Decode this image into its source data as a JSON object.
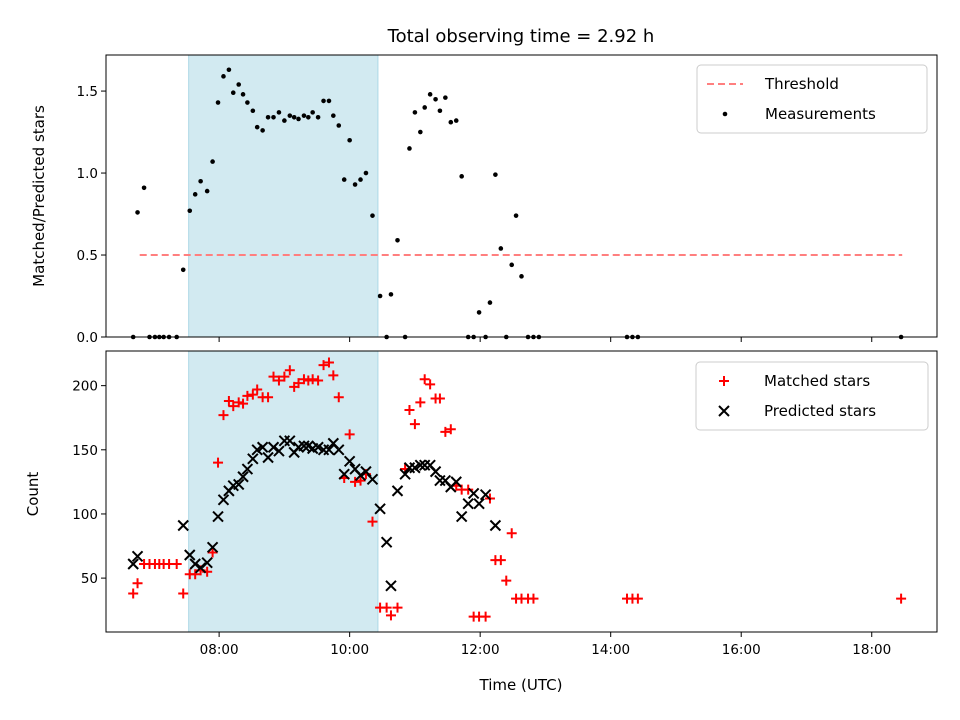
{
  "chart_data": [
    {
      "type": "scatter",
      "title": "Total observing time = 2.92 h",
      "xlabel": "",
      "ylabel": "Matched/Predicted stars",
      "xlim": [
        "06:16",
        "19:00"
      ],
      "ylim": [
        0,
        1.72
      ],
      "yticks": [
        "0.0",
        "0.5",
        "1.0",
        "1.5"
      ],
      "xticks": [
        "08:00",
        "10:00",
        "12:00",
        "14:00",
        "16:00",
        "18:00"
      ],
      "xtick_labels_shown": false,
      "shaded_interval": {
        "start": "07:32",
        "end": "10:26",
        "color": "#add8e6"
      },
      "legend": {
        "placement": "upper right"
      },
      "threshold": {
        "name": "Threshold",
        "value": 0.5,
        "x": [
          "06:47",
          "18:28"
        ],
        "color": "#ff7f7f",
        "style": "dashed"
      },
      "series": [
        {
          "name": "Measurements",
          "marker": "dot",
          "color": "#000000",
          "points": [
            [
              "06:41",
              0.0
            ],
            [
              "06:45",
              0.76
            ],
            [
              "06:51",
              0.91
            ],
            [
              "06:56",
              0.0
            ],
            [
              "07:01",
              0.0
            ],
            [
              "07:05",
              0.0
            ],
            [
              "07:09",
              0.0
            ],
            [
              "07:14",
              0.0
            ],
            [
              "07:21",
              0.0
            ],
            [
              "07:27",
              0.41
            ],
            [
              "07:33",
              0.77
            ],
            [
              "07:38",
              0.87
            ],
            [
              "07:43",
              0.95
            ],
            [
              "07:49",
              0.89
            ],
            [
              "07:54",
              1.07
            ],
            [
              "07:59",
              1.43
            ],
            [
              "08:04",
              1.59
            ],
            [
              "08:09",
              1.63
            ],
            [
              "08:13",
              1.49
            ],
            [
              "08:18",
              1.54
            ],
            [
              "08:22",
              1.48
            ],
            [
              "08:26",
              1.43
            ],
            [
              "08:31",
              1.38
            ],
            [
              "08:35",
              1.28
            ],
            [
              "08:40",
              1.26
            ],
            [
              "08:45",
              1.34
            ],
            [
              "08:50",
              1.34
            ],
            [
              "08:55",
              1.37
            ],
            [
              "09:00",
              1.32
            ],
            [
              "09:05",
              1.35
            ],
            [
              "09:09",
              1.34
            ],
            [
              "09:13",
              1.33
            ],
            [
              "09:18",
              1.35
            ],
            [
              "09:22",
              1.34
            ],
            [
              "09:26",
              1.37
            ],
            [
              "09:31",
              1.34
            ],
            [
              "09:36",
              1.44
            ],
            [
              "09:41",
              1.44
            ],
            [
              "09:45",
              1.35
            ],
            [
              "09:50",
              1.29
            ],
            [
              "09:55",
              0.96
            ],
            [
              "10:00",
              1.2
            ],
            [
              "10:05",
              0.93
            ],
            [
              "10:10",
              0.96
            ],
            [
              "10:15",
              1.0
            ],
            [
              "10:21",
              0.74
            ],
            [
              "10:28",
              0.25
            ],
            [
              "10:34",
              0.0
            ],
            [
              "10:38",
              0.26
            ],
            [
              "10:44",
              0.59
            ],
            [
              "10:51",
              0.0
            ],
            [
              "10:55",
              1.15
            ],
            [
              "11:00",
              1.37
            ],
            [
              "11:05",
              1.25
            ],
            [
              "11:09",
              1.4
            ],
            [
              "11:14",
              1.48
            ],
            [
              "11:19",
              1.45
            ],
            [
              "11:23",
              1.38
            ],
            [
              "11:28",
              1.46
            ],
            [
              "11:33",
              1.31
            ],
            [
              "11:38",
              1.32
            ],
            [
              "11:43",
              0.98
            ],
            [
              "11:49",
              0.0
            ],
            [
              "11:54",
              0.0
            ],
            [
              "11:59",
              0.15
            ],
            [
              "12:05",
              0.0
            ],
            [
              "12:09",
              0.21
            ],
            [
              "12:14",
              0.99
            ],
            [
              "12:19",
              0.54
            ],
            [
              "12:24",
              0.0
            ],
            [
              "12:29",
              0.44
            ],
            [
              "12:33",
              0.74
            ],
            [
              "12:38",
              0.37
            ],
            [
              "12:44",
              0.0
            ],
            [
              "12:49",
              0.0
            ],
            [
              "12:54",
              0.0
            ],
            [
              "14:15",
              0.0
            ],
            [
              "14:20",
              0.0
            ],
            [
              "14:25",
              0.0
            ],
            [
              "18:27",
              0.0
            ]
          ]
        }
      ]
    },
    {
      "type": "scatter",
      "title": "",
      "xlabel": "Time (UTC)",
      "ylabel": "Count",
      "xlim": [
        "06:16",
        "19:00"
      ],
      "ylim": [
        8,
        227
      ],
      "yticks": [
        "50",
        "100",
        "150",
        "200"
      ],
      "xticks": [
        "08:00",
        "10:00",
        "12:00",
        "14:00",
        "16:00",
        "18:00"
      ],
      "shaded_interval": {
        "start": "07:32",
        "end": "10:26",
        "color": "#add8e6"
      },
      "legend": {
        "placement": "upper right"
      },
      "series": [
        {
          "name": "Matched stars",
          "marker": "plus",
          "color": "#ff0000",
          "points": [
            [
              "06:41",
              38
            ],
            [
              "06:45",
              46
            ],
            [
              "06:51",
              61
            ],
            [
              "06:56",
              61
            ],
            [
              "07:01",
              61
            ],
            [
              "07:05",
              61
            ],
            [
              "07:09",
              61
            ],
            [
              "07:14",
              61
            ],
            [
              "07:21",
              61
            ],
            [
              "07:27",
              38
            ],
            [
              "07:33",
              53
            ],
            [
              "07:38",
              53
            ],
            [
              "07:43",
              56
            ],
            [
              "07:49",
              55
            ],
            [
              "07:54",
              70
            ],
            [
              "07:59",
              140
            ],
            [
              "08:04",
              177
            ],
            [
              "08:09",
              188
            ],
            [
              "08:13",
              184
            ],
            [
              "08:18",
              187
            ],
            [
              "08:22",
              186
            ],
            [
              "08:26",
              192
            ],
            [
              "08:31",
              193
            ],
            [
              "08:35",
              197
            ],
            [
              "08:40",
              191
            ],
            [
              "08:45",
              191
            ],
            [
              "08:50",
              207
            ],
            [
              "08:55",
              204
            ],
            [
              "09:00",
              207
            ],
            [
              "09:05",
              212
            ],
            [
              "09:09",
              199
            ],
            [
              "09:13",
              202
            ],
            [
              "09:18",
              205
            ],
            [
              "09:22",
              204
            ],
            [
              "09:26",
              205
            ],
            [
              "09:31",
              204
            ],
            [
              "09:36",
              216
            ],
            [
              "09:41",
              218
            ],
            [
              "09:45",
              208
            ],
            [
              "09:50",
              191
            ],
            [
              "09:55",
              128
            ],
            [
              "10:00",
              162
            ],
            [
              "10:05",
              125
            ],
            [
              "10:10",
              126
            ],
            [
              "10:15",
              131
            ],
            [
              "10:21",
              94
            ],
            [
              "10:28",
              27
            ],
            [
              "10:34",
              27
            ],
            [
              "10:38",
              21
            ],
            [
              "10:44",
              27
            ],
            [
              "10:51",
              135
            ],
            [
              "10:55",
              181
            ],
            [
              "11:00",
              170
            ],
            [
              "11:05",
              187
            ],
            [
              "11:09",
              205
            ],
            [
              "11:14",
              201
            ],
            [
              "11:19",
              190
            ],
            [
              "11:23",
              190
            ],
            [
              "11:28",
              164
            ],
            [
              "11:33",
              166
            ],
            [
              "11:38",
              122
            ],
            [
              "11:43",
              119
            ],
            [
              "11:49",
              119
            ],
            [
              "11:54",
              20
            ],
            [
              "11:59",
              20
            ],
            [
              "12:05",
              20
            ],
            [
              "12:09",
              112
            ],
            [
              "12:14",
              64
            ],
            [
              "12:19",
              64
            ],
            [
              "12:24",
              48
            ],
            [
              "12:29",
              85
            ],
            [
              "12:33",
              34
            ],
            [
              "12:38",
              34
            ],
            [
              "12:44",
              34
            ],
            [
              "12:49",
              34
            ],
            [
              "14:15",
              34
            ],
            [
              "14:20",
              34
            ],
            [
              "14:25",
              34
            ],
            [
              "18:27",
              34
            ]
          ]
        },
        {
          "name": "Predicted stars",
          "marker": "x",
          "color": "#000000",
          "points": [
            [
              "06:41",
              61
            ],
            [
              "06:45",
              67
            ],
            [
              "07:27",
              91
            ],
            [
              "07:33",
              68
            ],
            [
              "07:38",
              61
            ],
            [
              "07:43",
              58
            ],
            [
              "07:49",
              62
            ],
            [
              "07:54",
              74
            ],
            [
              "07:59",
              98
            ],
            [
              "08:04",
              111
            ],
            [
              "08:09",
              118
            ],
            [
              "08:13",
              122
            ],
            [
              "08:18",
              123
            ],
            [
              "08:22",
              129
            ],
            [
              "08:26",
              135
            ],
            [
              "08:31",
              143
            ],
            [
              "08:35",
              150
            ],
            [
              "08:40",
              152
            ],
            [
              "08:45",
              144
            ],
            [
              "08:50",
              152
            ],
            [
              "08:55",
              149
            ],
            [
              "09:00",
              157
            ],
            [
              "09:05",
              157
            ],
            [
              "09:09",
              148
            ],
            [
              "09:13",
              152
            ],
            [
              "09:18",
              153
            ],
            [
              "09:22",
              153
            ],
            [
              "09:26",
              151
            ],
            [
              "09:31",
              152
            ],
            [
              "09:36",
              150
            ],
            [
              "09:41",
              150
            ],
            [
              "09:45",
              155
            ],
            [
              "09:50",
              150
            ],
            [
              "09:55",
              131
            ],
            [
              "10:00",
              141
            ],
            [
              "10:05",
              135
            ],
            [
              "10:10",
              130
            ],
            [
              "10:15",
              133
            ],
            [
              "10:21",
              127
            ],
            [
              "10:28",
              104
            ],
            [
              "10:34",
              78
            ],
            [
              "10:38",
              44
            ],
            [
              "10:44",
              118
            ],
            [
              "10:51",
              131
            ],
            [
              "10:55",
              136
            ],
            [
              "11:00",
              136
            ],
            [
              "11:05",
              138
            ],
            [
              "11:09",
              138
            ],
            [
              "11:14",
              138
            ],
            [
              "11:19",
              133
            ],
            [
              "11:23",
              126
            ],
            [
              "11:28",
              126
            ],
            [
              "11:33",
              121
            ],
            [
              "11:38",
              125
            ],
            [
              "11:43",
              98
            ],
            [
              "11:49",
              108
            ],
            [
              "11:54",
              116
            ],
            [
              "11:59",
              108
            ],
            [
              "12:05",
              115
            ],
            [
              "12:14",
              91
            ]
          ]
        }
      ]
    }
  ]
}
